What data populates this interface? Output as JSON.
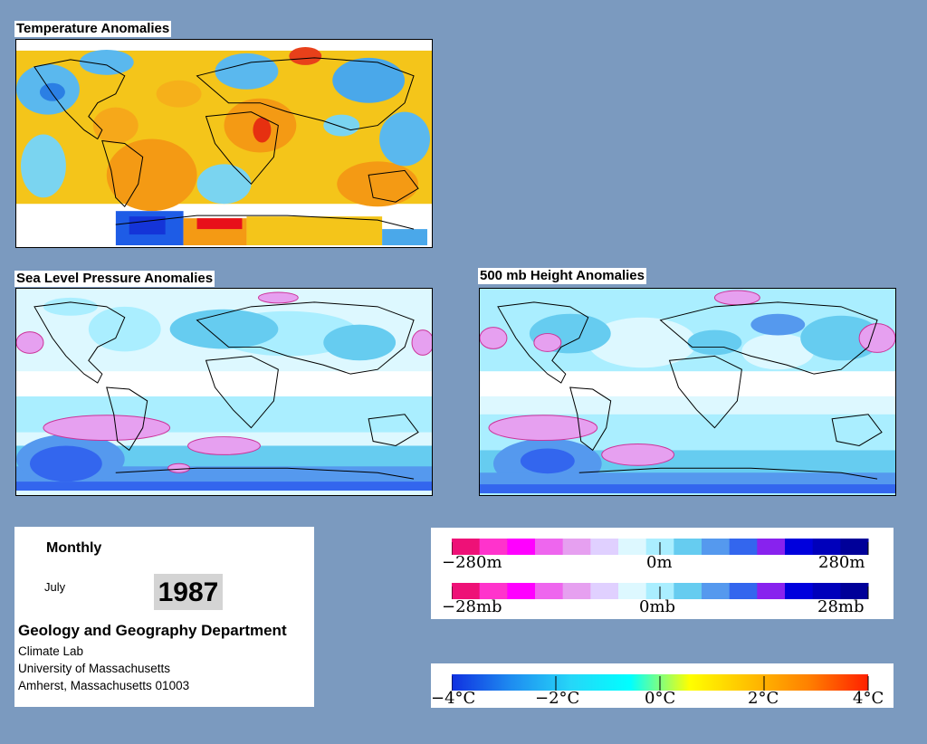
{
  "titles": {
    "temperature": "Temperature Anomalies",
    "slp": "Sea Level Pressure Anomalies",
    "height500": "500 mb Height Anomalies"
  },
  "info": {
    "period": "Monthly",
    "month": "July",
    "year": "1987",
    "department": "Geology and Geography Department",
    "lab": "Climate Lab",
    "university": "University of Massachusetts",
    "address": "Amherst, Massachusetts 01003"
  },
  "height_scale": {
    "min": "−280m",
    "mid": "0m",
    "max": "280m"
  },
  "pressure_scale": {
    "min": "−28mb",
    "mid": "0mb",
    "max": "28mb"
  },
  "temp_scale": {
    "l1": "−4°C",
    "l2": "−2°C",
    "l3": "0°C",
    "l4": "2°C",
    "l5": "4°C"
  },
  "colors": {
    "background": "#7b9abf",
    "anomaly_bins": [
      "#ee1177",
      "#ff33cc",
      "#ff00ff",
      "#ee66ee",
      "#e6a0f0",
      "#e0d0ff",
      "#ddf8ff",
      "#aaeeff",
      "#66ccf0",
      "#5599ee",
      "#3366ee",
      "#8822ee",
      "#0000dd",
      "#0000bb",
      "#000099"
    ],
    "temp_gradient": [
      "#1030e0",
      "#1e8cf0",
      "#26d6f8",
      "#00ffff",
      "#ffff00",
      "#ffc000",
      "#ff8000",
      "#ff2000"
    ]
  }
}
